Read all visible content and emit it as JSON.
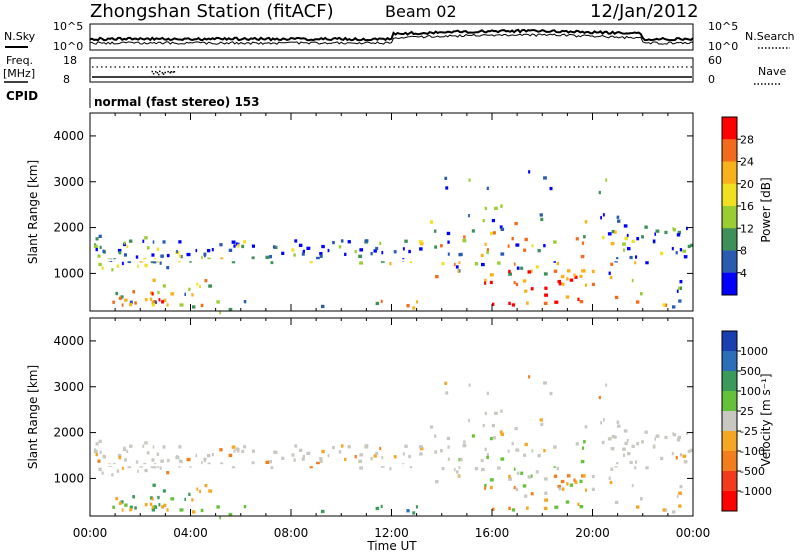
{
  "header": {
    "station": "Zhongshan Station (fitACF)",
    "beam": "Beam 02",
    "date": "12/Jan/2012"
  },
  "top_panel": {
    "left_label": "N.Sky",
    "left_ticks": [
      "10^5",
      "10^0"
    ],
    "right_ticks": [
      "10^5",
      "10^0"
    ],
    "right_label": "N.Search"
  },
  "freq_panel": {
    "left_label_line1": "Freq.",
    "left_label_line2": "[MHz]",
    "left_ticks": [
      "18",
      "8"
    ],
    "right_ticks": [
      "60",
      "0"
    ],
    "right_label": "Nave"
  },
  "cpid": {
    "label": "CPID",
    "text": "normal (fast stereo) 153"
  },
  "chart_data": [
    {
      "type": "heatmap",
      "title": "Power",
      "ylabel": "Slant Range [km]",
      "xlabel": "Time UT",
      "x_ticks": [
        "00:00",
        "04:00",
        "08:00",
        "12:00",
        "16:00",
        "20:00",
        "00:00"
      ],
      "y_ticks": [
        "1000",
        "2000",
        "3000",
        "4000"
      ],
      "ylim": [
        180,
        4500
      ],
      "xlim_hours": [
        0,
        24
      ],
      "colorbar": {
        "label": "Power [dB]",
        "ticks": [
          "4",
          "8",
          "12",
          "16",
          "20",
          "24",
          "28"
        ],
        "colors": [
          "#0000ff",
          "#2b5bb0",
          "#3f8f5a",
          "#9acd32",
          "#f0e020",
          "#f7b21b",
          "#f26b1d",
          "#ff0000"
        ]
      }
    },
    {
      "type": "heatmap",
      "title": "Velocity",
      "ylabel": "Slant Range [km]",
      "xlabel": "Time UT",
      "x_ticks": [
        "00:00",
        "04:00",
        "08:00",
        "12:00",
        "16:00",
        "20:00",
        "00:00"
      ],
      "y_ticks": [
        "1000",
        "2000",
        "3000",
        "4000"
      ],
      "ylim": [
        180,
        4500
      ],
      "xlim_hours": [
        0,
        24
      ],
      "colorbar": {
        "label": "Velocity [m s⁻¹]",
        "ticks": [
          "1000",
          "500",
          "100",
          "25",
          "-25",
          "-100",
          "-500",
          "-1000"
        ],
        "colors": [
          "#1a3fb0",
          "#2c6fb8",
          "#3a9a5a",
          "#66c13a",
          "#c8c8c0",
          "#f5a623",
          "#f27d1d",
          "#f23b1d",
          "#ff0000"
        ]
      }
    }
  ],
  "x_axis_title": "Time UT"
}
